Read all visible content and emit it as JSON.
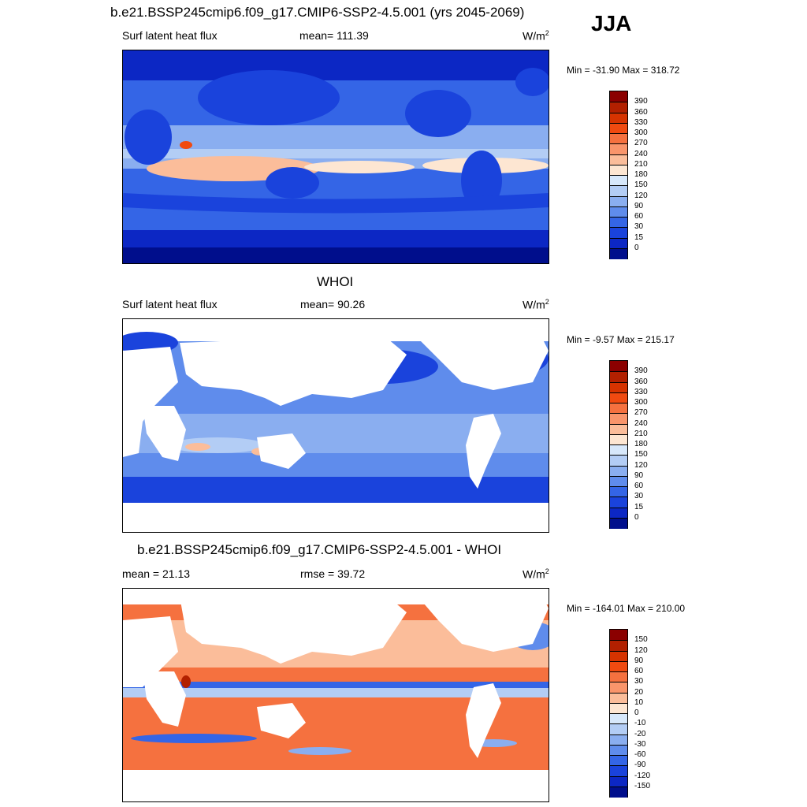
{
  "season": "JJA",
  "panels": [
    {
      "id": "model",
      "header": "b.e21.BSSP245cmip6.f09_g17.CMIP6-SSP2-4.5.001 (yrs 2045-2069)",
      "variable": "Surf latent heat flux",
      "stat": "mean= 111.39",
      "units": "W/m",
      "units_exp": "2",
      "minmax": "Min = -31.90 Max = 318.72"
    },
    {
      "id": "obs",
      "header": "WHOI",
      "variable": "Surf latent heat flux",
      "stat": "mean=  90.26",
      "units": "W/m",
      "units_exp": "2",
      "minmax": "Min =  -9.57 Max = 215.17"
    },
    {
      "id": "diff",
      "header": "b.e21.BSSP245cmip6.f09_g17.CMIP6-SSP2-4.5.001 - WHOI",
      "stat_left": "mean =  21.13",
      "stat_mid": "rmse =  39.72",
      "units": "W/m",
      "units_exp": "2",
      "minmax": "Min = -164.01 Max = 210.00"
    }
  ],
  "colorbars": {
    "abs": {
      "labels": [
        "390",
        "360",
        "330",
        "300",
        "270",
        "240",
        "210",
        "180",
        "150",
        "120",
        "90",
        "60",
        "30",
        "15",
        "0"
      ],
      "colors": [
        "#8b0000",
        "#b22000",
        "#d63300",
        "#f04a10",
        "#f5713f",
        "#f9956b",
        "#fbbd9a",
        "#fde6d2",
        "#d7e8fb",
        "#b3cdf5",
        "#8aaef0",
        "#5f8cec",
        "#3465e6",
        "#1a43dc",
        "#0c27c4",
        "#000e8c"
      ]
    },
    "diff": {
      "labels": [
        "150",
        "120",
        "90",
        "60",
        "30",
        "20",
        "10",
        "0",
        "-10",
        "-20",
        "-30",
        "-60",
        "-90",
        "-120",
        "-150"
      ],
      "colors": [
        "#8b0000",
        "#b22000",
        "#d63300",
        "#f04a10",
        "#f5713f",
        "#f9956b",
        "#fbbd9a",
        "#fde6d2",
        "#d7e8fb",
        "#b3cdf5",
        "#8aaef0",
        "#5f8cec",
        "#3465e6",
        "#1a43dc",
        "#0c27c4",
        "#000e8c"
      ]
    }
  }
}
